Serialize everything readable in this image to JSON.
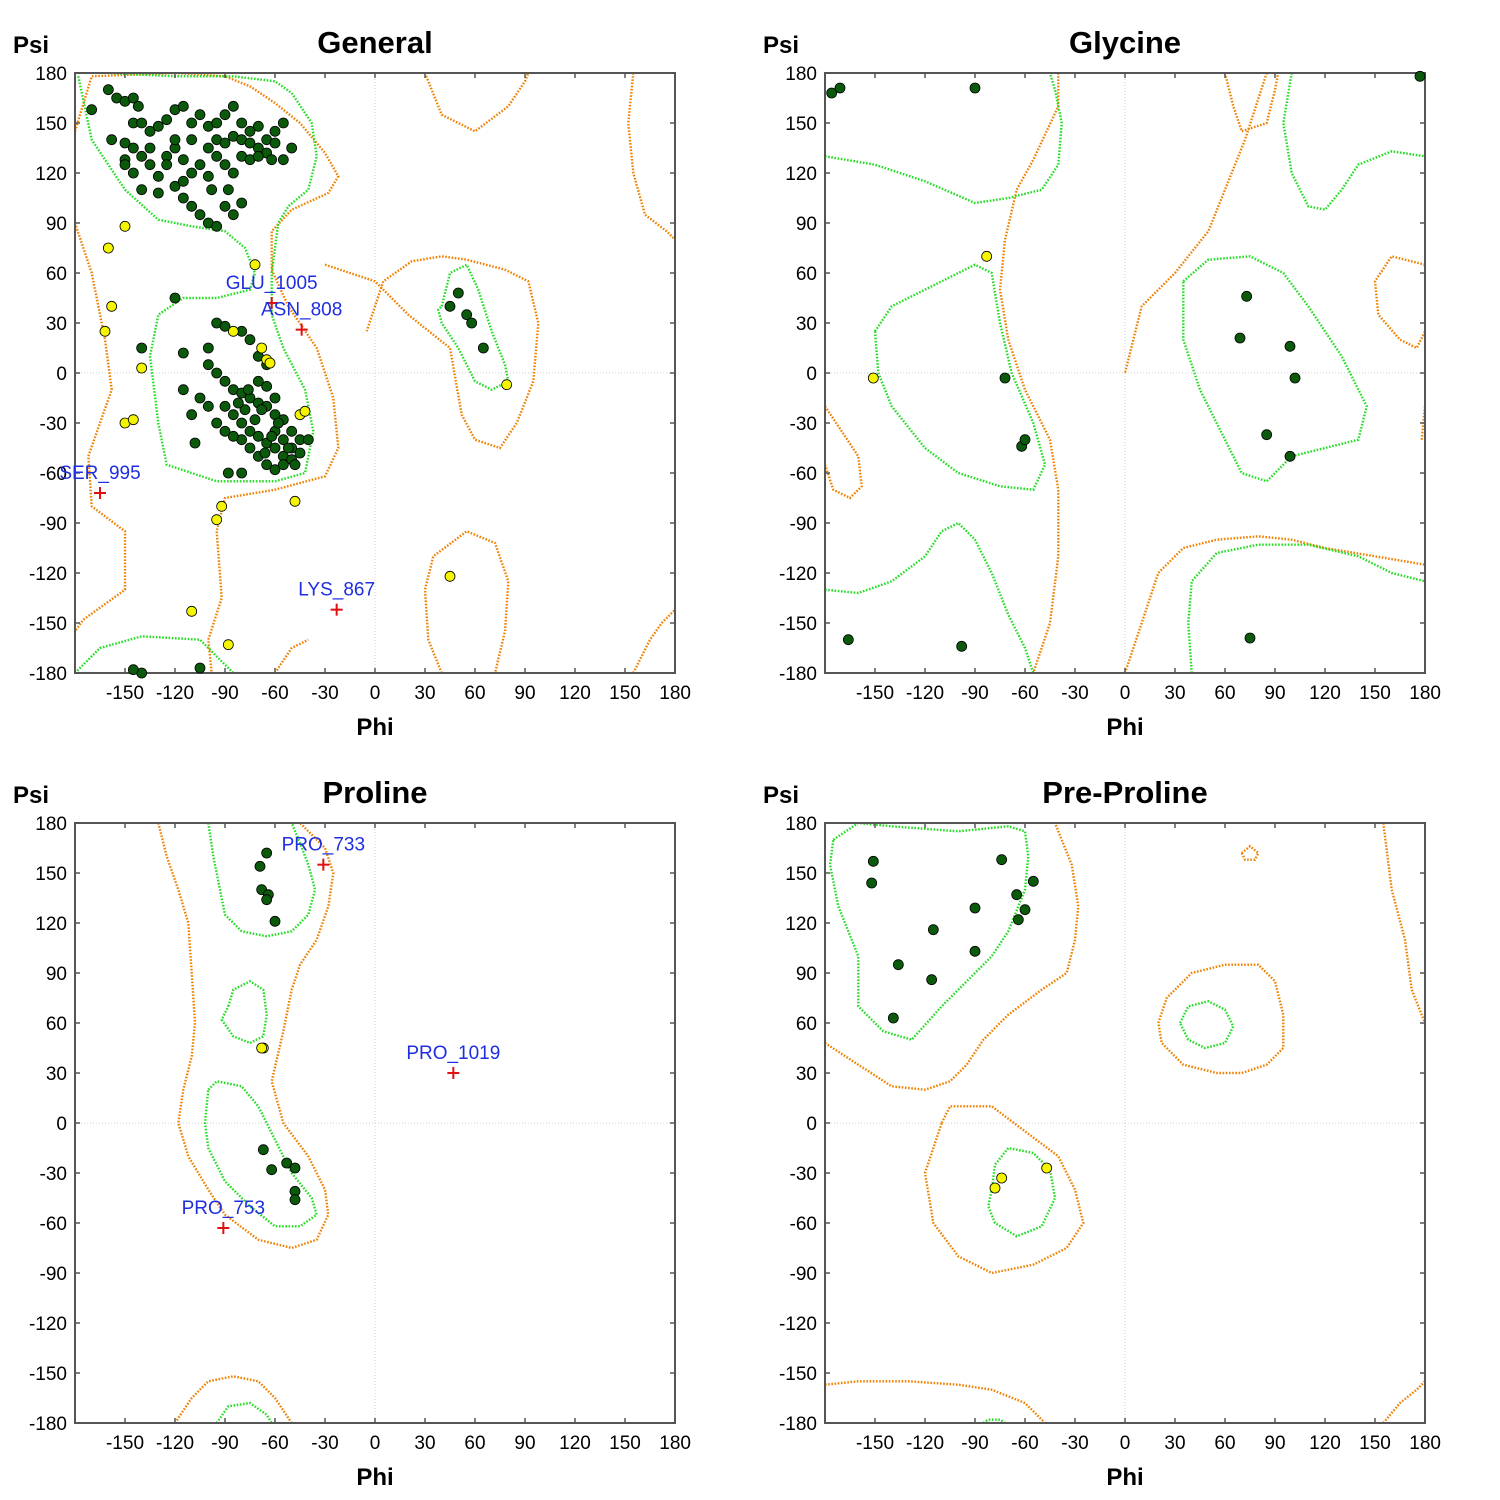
{
  "colors": {
    "favored_point": "#0b5a0b",
    "allowed_point": "#f5f500",
    "outlier_marker": "#e01010",
    "outlier_label": "#1f2ee0",
    "favored_contour": "#22dd22",
    "allowed_contour": "#f08000"
  },
  "chart_data": [
    {
      "type": "scatter",
      "title": "General",
      "xlabel": "Phi",
      "ylabel": "Psi",
      "xlim": [
        -180,
        180
      ],
      "ylim": [
        -180,
        180
      ],
      "xticks": [
        "-150",
        "-120",
        "-90",
        "-60",
        "-30",
        "0",
        "30",
        "60",
        "90",
        "120",
        "150",
        "180"
      ],
      "yticks": [
        "180",
        "150",
        "120",
        "90",
        "60",
        "30",
        "0",
        "-30",
        "-60",
        "-90",
        "-120",
        "-150",
        "-180"
      ],
      "favored": [
        [
          -170,
          158
        ],
        [
          -160,
          170
        ],
        [
          -155,
          165
        ],
        [
          -150,
          163
        ],
        [
          -145,
          165
        ],
        [
          -142,
          160
        ],
        [
          -158,
          140
        ],
        [
          -145,
          150
        ],
        [
          -150,
          138
        ],
        [
          -140,
          150
        ],
        [
          -135,
          145
        ],
        [
          -130,
          148
        ],
        [
          -125,
          152
        ],
        [
          -120,
          158
        ],
        [
          -115,
          160
        ],
        [
          -110,
          150
        ],
        [
          -105,
          155
        ],
        [
          -100,
          148
        ],
        [
          -95,
          150
        ],
        [
          -90,
          155
        ],
        [
          -85,
          160
        ],
        [
          -80,
          150
        ],
        [
          -75,
          145
        ],
        [
          -70,
          148
        ],
        [
          -65,
          140
        ],
        [
          -60,
          145
        ],
        [
          -55,
          150
        ],
        [
          -50,
          135
        ],
        [
          -150,
          128
        ],
        [
          -145,
          120
        ],
        [
          -140,
          130
        ],
        [
          -135,
          125
        ],
        [
          -130,
          118
        ],
        [
          -125,
          130
        ],
        [
          -120,
          135
        ],
        [
          -115,
          128
        ],
        [
          -110,
          120
        ],
        [
          -105,
          125
        ],
        [
          -100,
          118
        ],
        [
          -95,
          130
        ],
        [
          -90,
          125
        ],
        [
          -85,
          120
        ],
        [
          -80,
          130
        ],
        [
          -75,
          128
        ],
        [
          -70,
          135
        ],
        [
          -65,
          132
        ],
        [
          -60,
          138
        ],
        [
          -140,
          110
        ],
        [
          -130,
          108
        ],
        [
          -120,
          112
        ],
        [
          -115,
          105
        ],
        [
          -110,
          100
        ],
        [
          -105,
          95
        ],
        [
          -100,
          90
        ],
        [
          -95,
          88
        ],
        [
          -90,
          100
        ],
        [
          -85,
          95
        ],
        [
          -80,
          102
        ],
        [
          -120,
          140
        ],
        [
          -125,
          125
        ],
        [
          -135,
          135
        ],
        [
          -110,
          140
        ],
        [
          -100,
          135
        ],
        [
          -95,
          140
        ],
        [
          -90,
          138
        ],
        [
          -85,
          142
        ],
        [
          -80,
          140
        ],
        [
          -75,
          138
        ],
        [
          -70,
          130
        ],
        [
          -62,
          128
        ],
        [
          -55,
          128
        ],
        [
          -145,
          135
        ],
        [
          -150,
          125
        ],
        [
          -115,
          115
        ],
        [
          -98,
          110
        ],
        [
          -88,
          110
        ],
        [
          -120,
          45
        ],
        [
          -140,
          15
        ],
        [
          -115,
          12
        ],
        [
          -100,
          15
        ],
        [
          -95,
          30
        ],
        [
          -90,
          28
        ],
        [
          -80,
          25
        ],
        [
          -75,
          20
        ],
        [
          -70,
          10
        ],
        [
          -65,
          5
        ],
        [
          -100,
          5
        ],
        [
          -95,
          0
        ],
        [
          -90,
          -5
        ],
        [
          -85,
          -10
        ],
        [
          -80,
          -12
        ],
        [
          -75,
          -15
        ],
        [
          -70,
          -18
        ],
        [
          -65,
          -20
        ],
        [
          -60,
          -25
        ],
        [
          -55,
          -28
        ],
        [
          -50,
          -35
        ],
        [
          -45,
          -40
        ],
        [
          -85,
          -25
        ],
        [
          -80,
          -30
        ],
        [
          -75,
          -35
        ],
        [
          -70,
          -38
        ],
        [
          -65,
          -42
        ],
        [
          -60,
          -45
        ],
        [
          -55,
          -50
        ],
        [
          -50,
          -52
        ],
        [
          -45,
          -48
        ],
        [
          -70,
          -50
        ],
        [
          -65,
          -55
        ],
        [
          -60,
          -58
        ],
        [
          -55,
          -55
        ],
        [
          -50,
          -45
        ],
        [
          -75,
          -45
        ],
        [
          -80,
          -40
        ],
        [
          -85,
          -38
        ],
        [
          -90,
          -35
        ],
        [
          -95,
          -30
        ],
        [
          -100,
          -20
        ],
        [
          -105,
          -15
        ],
        [
          -110,
          -25
        ],
        [
          -115,
          -10
        ],
        [
          -108,
          -42
        ],
        [
          -88,
          -60
        ],
        [
          -80,
          -60
        ],
        [
          -60,
          -35
        ],
        [
          -58,
          -30
        ],
        [
          -62,
          -38
        ],
        [
          -66,
          -48
        ],
        [
          -72,
          -28
        ],
        [
          -68,
          -22
        ],
        [
          -76,
          -10
        ],
        [
          -55,
          -40
        ],
        [
          -52,
          -45
        ],
        [
          -48,
          -55
        ],
        [
          -40,
          -40
        ],
        [
          -70,
          -5
        ],
        [
          -65,
          -8
        ],
        [
          -60,
          -15
        ],
        [
          -78,
          -22
        ],
        [
          -82,
          -18
        ],
        [
          -90,
          -20
        ],
        [
          45,
          40
        ],
        [
          50,
          48
        ],
        [
          55,
          35
        ],
        [
          58,
          30
        ],
        [
          65,
          15
        ],
        [
          -140,
          -180
        ],
        [
          -145,
          -178
        ],
        [
          -105,
          -177
        ]
      ],
      "allowed": [
        [
          -150,
          88
        ],
        [
          -160,
          75
        ],
        [
          -158,
          40
        ],
        [
          -162,
          25
        ],
        [
          -140,
          3
        ],
        [
          -150,
          -30
        ],
        [
          -145,
          -28
        ],
        [
          -85,
          25
        ],
        [
          -72,
          65
        ],
        [
          -68,
          15
        ],
        [
          -65,
          8
        ],
        [
          -63,
          6
        ],
        [
          -45,
          -25
        ],
        [
          -42,
          -23
        ],
        [
          -48,
          -77
        ],
        [
          -95,
          -88
        ],
        [
          -92,
          -80
        ],
        [
          -110,
          -143
        ],
        [
          -88,
          -163
        ],
        [
          45,
          -122
        ],
        [
          79,
          -7
        ]
      ],
      "outliers": [
        {
          "label": "GLU_1005",
          "phi": -62,
          "psi": 42
        },
        {
          "label": "ASN_808",
          "phi": -44,
          "psi": 26
        },
        {
          "label": "SER_995",
          "phi": -165,
          "psi": -72
        },
        {
          "label": "LYS_867",
          "phi": -23,
          "psi": -142
        }
      ]
    },
    {
      "type": "scatter",
      "title": "Glycine",
      "xlabel": "Phi",
      "ylabel": "Psi",
      "xlim": [
        -180,
        180
      ],
      "ylim": [
        -180,
        180
      ],
      "xticks": [
        "-150",
        "-120",
        "-90",
        "-60",
        "-30",
        "0",
        "30",
        "60",
        "90",
        "120",
        "150",
        "180"
      ],
      "yticks": [
        "180",
        "150",
        "120",
        "90",
        "60",
        "30",
        "0",
        "-30",
        "-60",
        "-90",
        "-120",
        "-150",
        "-180"
      ],
      "favored": [
        [
          -176,
          168
        ],
        [
          -171,
          171
        ],
        [
          -90,
          171
        ],
        [
          177,
          178
        ],
        [
          -72,
          -3
        ],
        [
          -62,
          -44
        ],
        [
          -60,
          -40
        ],
        [
          73,
          46
        ],
        [
          69,
          21
        ],
        [
          99,
          16
        ],
        [
          102,
          -3
        ],
        [
          85,
          -37
        ],
        [
          99,
          -50
        ],
        [
          -166,
          -160
        ],
        [
          -98,
          -164
        ],
        [
          75,
          -159
        ]
      ],
      "allowed": [
        [
          -151,
          -3
        ],
        [
          -83,
          70
        ]
      ],
      "outliers": []
    },
    {
      "type": "scatter",
      "title": "Proline",
      "xlabel": "Phi",
      "ylabel": "Psi",
      "xlim": [
        -180,
        180
      ],
      "ylim": [
        -180,
        180
      ],
      "xticks": [
        "-150",
        "-120",
        "-90",
        "-60",
        "-30",
        "0",
        "30",
        "60",
        "90",
        "120",
        "150",
        "180"
      ],
      "yticks": [
        "180",
        "150",
        "120",
        "90",
        "60",
        "30",
        "0",
        "-30",
        "-60",
        "-90",
        "-120",
        "-150",
        "-180"
      ],
      "favored": [
        [
          -65,
          162
        ],
        [
          -69,
          154
        ],
        [
          -68,
          140
        ],
        [
          -64,
          137
        ],
        [
          -65,
          134
        ],
        [
          -60,
          121
        ],
        [
          -67,
          -16
        ],
        [
          -62,
          -28
        ],
        [
          -53,
          -24
        ],
        [
          -48,
          -27
        ],
        [
          -48,
          -41
        ],
        [
          -48,
          -46
        ]
      ],
      "allowed": [
        [
          -67,
          45
        ],
        [
          -68,
          45
        ]
      ],
      "outliers": [
        {
          "label": "PRO_733",
          "phi": -31,
          "psi": 155
        },
        {
          "label": "PRO_1019",
          "phi": 47,
          "psi": 30
        },
        {
          "label": "PRO_753",
          "phi": -91,
          "psi": -63
        }
      ]
    },
    {
      "type": "scatter",
      "title": "Pre-Proline",
      "xlabel": "Phi",
      "ylabel": "Psi",
      "xlim": [
        -180,
        180
      ],
      "ylim": [
        -180,
        180
      ],
      "xticks": [
        "-150",
        "-120",
        "-90",
        "-60",
        "-30",
        "0",
        "30",
        "60",
        "90",
        "120",
        "150",
        "180"
      ],
      "yticks": [
        "180",
        "150",
        "120",
        "90",
        "60",
        "30",
        "0",
        "-30",
        "-60",
        "-90",
        "-120",
        "-150",
        "-180"
      ],
      "favored": [
        [
          -151,
          157
        ],
        [
          -152,
          144
        ],
        [
          -74,
          158
        ],
        [
          -90,
          129
        ],
        [
          -65,
          137
        ],
        [
          -55,
          145
        ],
        [
          -60,
          128
        ],
        [
          -64,
          122
        ],
        [
          -115,
          116
        ],
        [
          -90,
          103
        ],
        [
          -136,
          95
        ],
        [
          -116,
          86
        ],
        [
          -139,
          63
        ]
      ],
      "allowed": [
        [
          -47,
          -27
        ],
        [
          -74,
          -33
        ],
        [
          -78,
          -39
        ]
      ],
      "outliers": []
    }
  ]
}
